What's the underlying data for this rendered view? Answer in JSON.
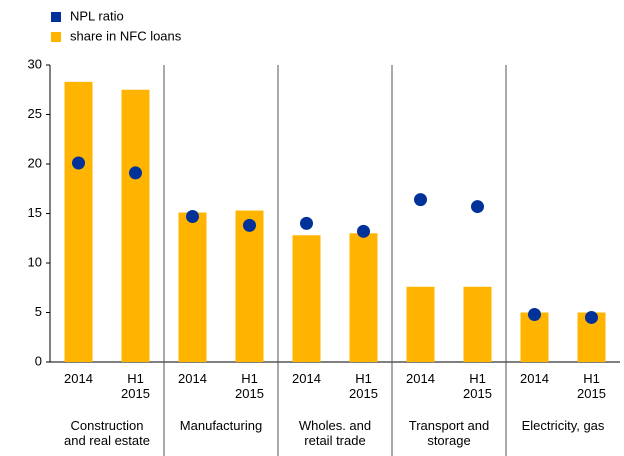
{
  "chart_data": {
    "type": "bar",
    "categories": [
      "2014",
      "H1 2015",
      "2014",
      "H1 2015",
      "2014",
      "H1 2015",
      "2014",
      "H1 2015",
      "2014",
      "H1 2015"
    ],
    "groups": [
      "Construction and real estate",
      "Manufacturing",
      "Wholes. and retail trade",
      "Transport and storage",
      "Electricity, gas"
    ],
    "series": [
      {
        "name": "NPL ratio",
        "color": "#003299",
        "marker": "dot",
        "values": [
          20.1,
          19.1,
          14.7,
          13.8,
          14.0,
          13.2,
          16.4,
          15.7,
          4.8,
          4.5
        ]
      },
      {
        "name": "share in NFC loans",
        "color": "#ffb400",
        "marker": "bar",
        "values": [
          28.3,
          27.5,
          15.1,
          15.3,
          12.8,
          13.0,
          7.6,
          7.6,
          5.0,
          5.0
        ]
      }
    ],
    "ylim": [
      0,
      30
    ],
    "yticks": [
      0,
      5,
      10,
      15,
      20,
      25,
      30
    ]
  }
}
